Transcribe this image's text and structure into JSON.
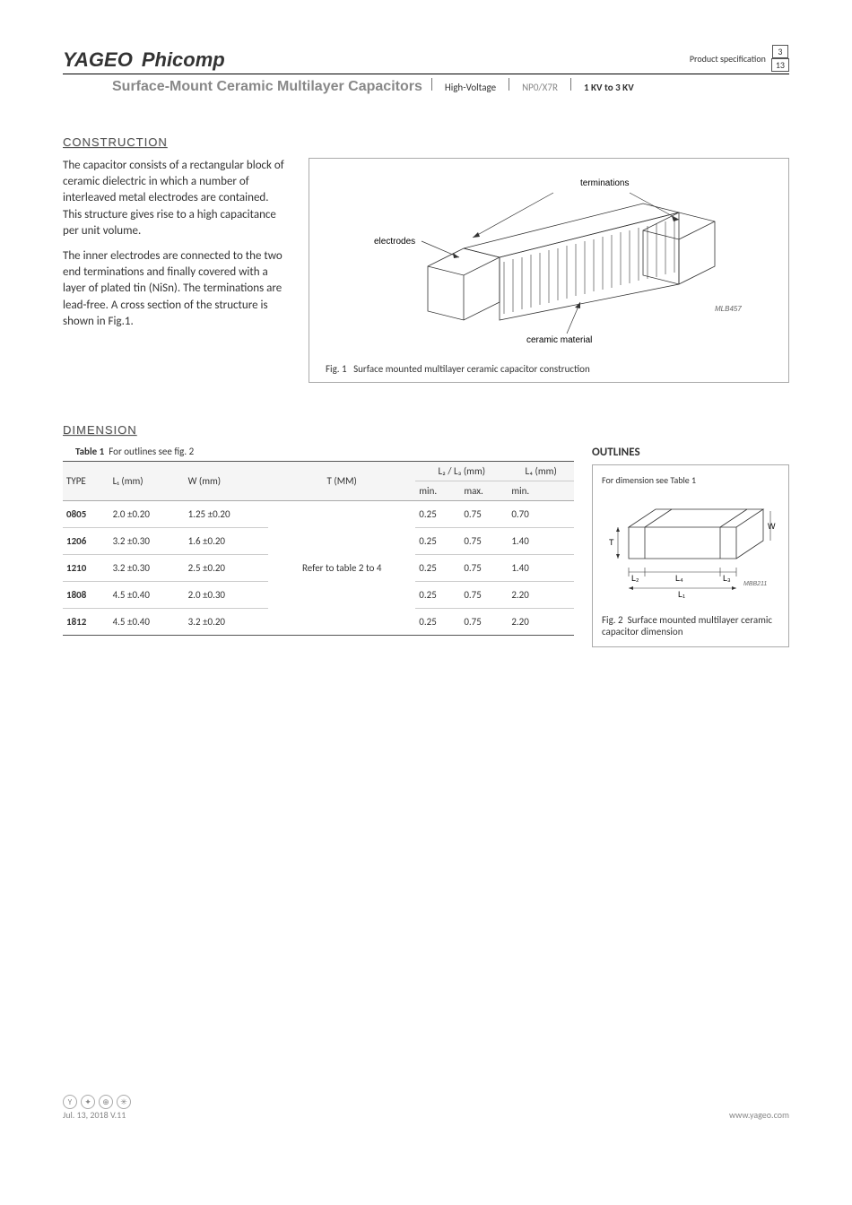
{
  "header": {
    "logo_main": "YAGEO",
    "logo_sub": "Phicomp",
    "prod_spec": "Product specification",
    "page_current": "3",
    "page_total": "13",
    "title": "Surface-Mount Ceramic Multilayer Capacitors",
    "col1": "High-Voltage",
    "col2": "NP0/X7R",
    "col3": "1 KV to 3 KV"
  },
  "construction": {
    "heading": "CONSTRUCTION",
    "p1": "The capacitor consists of a rectangular block of ceramic dielectric in which a number of interleaved metal electrodes are contained. This structure gives rise to a high capacitance per unit volume.",
    "p2": "The inner electrodes are connected to the two end terminations and finally covered with a layer of plated tin (NiSn). The terminations are lead-free. A cross section of the structure is shown in Fig.1.",
    "fig_label": "Fig. 1",
    "fig_caption": "Surface mounted multilayer ceramic capacitor construction",
    "diagram": {
      "label_terminations": "terminations",
      "label_electrodes": "electrodes",
      "label_ceramic": "ceramic material",
      "code": "MLB457"
    }
  },
  "dimension": {
    "heading": "DIMENSION",
    "table_caption_prefix": "Table 1",
    "table_caption": "For outlines see fig. 2",
    "col_type": "TYPE",
    "col_l1": "L₁ (mm)",
    "col_w": "W (mm)",
    "col_t": "T (MM)",
    "col_l23": "L₂ / L₃ (mm)",
    "col_l23_min": "min.",
    "col_l23_max": "max.",
    "col_l4": "L₄ (mm)",
    "col_l4_min": "min.",
    "t_merged": "Refer to table 2 to 4",
    "rows": [
      {
        "type": "0805",
        "l1": "2.0 ±0.20",
        "w": "1.25 ±0.20",
        "min": "0.25",
        "max": "0.75",
        "l4": "0.70"
      },
      {
        "type": "1206",
        "l1": "3.2 ±0.30",
        "w": "1.6 ±0.20",
        "min": "0.25",
        "max": "0.75",
        "l4": "1.40"
      },
      {
        "type": "1210",
        "l1": "3.2 ±0.30",
        "w": "2.5 ±0.20",
        "min": "0.25",
        "max": "0.75",
        "l4": "1.40"
      },
      {
        "type": "1808",
        "l1": "4.5 ±0.40",
        "w": "2.0 ±0.30",
        "min": "0.25",
        "max": "0.75",
        "l4": "2.20"
      },
      {
        "type": "1812",
        "l1": "4.5 ±0.40",
        "w": "3.2 ±0.20",
        "min": "0.25",
        "max": "0.75",
        "l4": "2.20"
      }
    ]
  },
  "outlines": {
    "heading": "OUTLINES",
    "note": "For dimension see Table 1",
    "fig_label": "Fig. 2",
    "fig_caption": "Surface mounted multilayer ceramic capacitor dimension",
    "labels": {
      "T": "T",
      "W": "W",
      "L1": "L₁",
      "L2": "L₂",
      "L3": "L₃",
      "L4": "L₄"
    },
    "code": "MBB211"
  },
  "footer": {
    "date": "Jul. 13, 2018 V.11",
    "url": "www.yageo.com"
  }
}
